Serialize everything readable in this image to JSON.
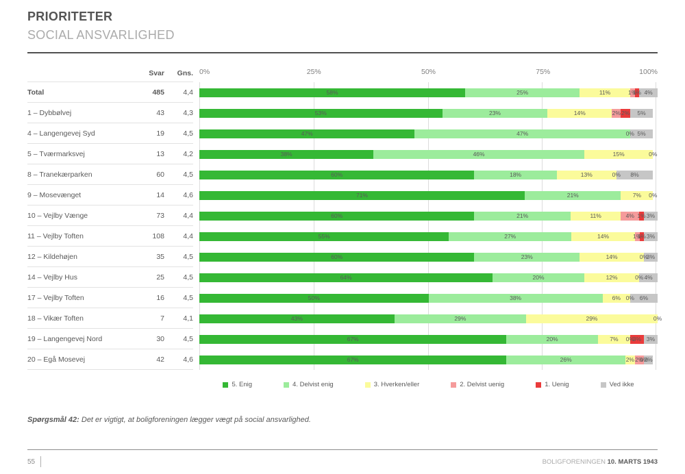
{
  "header": {
    "title": "PRIORITETER",
    "subtitle": "SOCIAL ANSVARLIGHED"
  },
  "table_headers": {
    "svar": "Svar",
    "gns": "Gns."
  },
  "axis_ticks": [
    "0%",
    "25%",
    "50%",
    "75%",
    "100%"
  ],
  "legend": [
    {
      "label": "5. Enig",
      "color": "#35B835"
    },
    {
      "label": "4. Delvist enig",
      "color": "#9CEC9C"
    },
    {
      "label": "3. Hverken/eller",
      "color": "#FBFB9B"
    },
    {
      "label": "2. Delvist uenig",
      "color": "#F59B9B"
    },
    {
      "label": "1. Uenig",
      "color": "#EA3B3B"
    },
    {
      "label": "Ved ikke",
      "color": "#C6C6C6"
    }
  ],
  "chart_data": {
    "type": "bar",
    "orientation": "horizontal",
    "stacked": true,
    "xlim": [
      0,
      100
    ],
    "grid": true,
    "series_names": [
      "5. Enig",
      "4. Delvist enig",
      "3. Hverken/eller",
      "2. Delvist uenig",
      "1. Uenig",
      "Ved ikke"
    ],
    "colors": [
      "#35B835",
      "#9CEC9C",
      "#FBFB9B",
      "#F59B9B",
      "#EA3B3B",
      "#C6C6C6"
    ],
    "rows": [
      {
        "label": "Total",
        "svar": "485",
        "gns": "4,4",
        "bold": true,
        "values": [
          58,
          25,
          11,
          1,
          1,
          4
        ],
        "labels": [
          "58%",
          "25%",
          "11%",
          "1%",
          "1%",
          "4%"
        ]
      },
      {
        "label": "1 – Dybbølvej",
        "svar": "43",
        "gns": "4,3",
        "bold": false,
        "values": [
          53,
          23,
          14,
          2,
          2,
          5
        ],
        "labels": [
          "53%",
          "23%",
          "14%",
          "2%",
          "2%",
          "5%"
        ]
      },
      {
        "label": "4 – Langengevej Syd",
        "svar": "19",
        "gns": "4,5",
        "bold": false,
        "values": [
          47,
          47,
          0,
          0,
          0,
          5
        ],
        "labels": [
          "47%",
          "47%",
          "",
          "0%",
          "",
          "5%"
        ]
      },
      {
        "label": "5 – Tværmarksvej",
        "svar": "13",
        "gns": "4,2",
        "bold": false,
        "values": [
          38,
          46,
          15,
          0,
          0,
          0
        ],
        "labels": [
          "38%",
          "46%",
          "15%",
          "",
          "",
          "0%"
        ]
      },
      {
        "label": "8 – Tranekærparken",
        "svar": "60",
        "gns": "4,5",
        "bold": false,
        "values": [
          60,
          18,
          13,
          0,
          0,
          8
        ],
        "labels": [
          "60%",
          "18%",
          "13%",
          "0%",
          "",
          "8%"
        ]
      },
      {
        "label": "9 – Mosevænget",
        "svar": "14",
        "gns": "4,6",
        "bold": false,
        "values": [
          71,
          21,
          7,
          0,
          0,
          0
        ],
        "labels": [
          "71%",
          "21%",
          "7%",
          "",
          "",
          "0%"
        ]
      },
      {
        "label": "10 – Vejlby Vænge",
        "svar": "73",
        "gns": "4,4",
        "bold": false,
        "values": [
          60,
          21,
          11,
          4,
          1,
          3
        ],
        "labels": [
          "60%",
          "21%",
          "11%",
          "4%",
          "1%",
          "3%"
        ]
      },
      {
        "label": "11 – Vejlby Toften",
        "svar": "108",
        "gns": "4,4",
        "bold": false,
        "values": [
          55,
          27,
          14,
          1,
          1,
          3
        ],
        "labels": [
          "55%",
          "27%",
          "14%",
          "1%",
          "1%",
          "3%"
        ]
      },
      {
        "label": "12 – Kildehøjen",
        "svar": "35",
        "gns": "4,5",
        "bold": false,
        "values": [
          60,
          23,
          14,
          0,
          0,
          3
        ],
        "labels": [
          "60%",
          "23%",
          "14%",
          "0%",
          "",
          "3%"
        ]
      },
      {
        "label": "14 – Vejlby Hus",
        "svar": "25",
        "gns": "4,5",
        "bold": false,
        "values": [
          64,
          20,
          12,
          0,
          0,
          4
        ],
        "labels": [
          "64%",
          "20%",
          "12%",
          "0%",
          "",
          "4%"
        ]
      },
      {
        "label": "17 – Vejlby Toften",
        "svar": "16",
        "gns": "4,5",
        "bold": false,
        "values": [
          50,
          38,
          6,
          0,
          0,
          6
        ],
        "labels": [
          "50%",
          "38%",
          "6%",
          "0%",
          "",
          "6%"
        ]
      },
      {
        "label": "18 – Vikær Toften",
        "svar": "7",
        "gns": "4,1",
        "bold": false,
        "values": [
          43,
          29,
          29,
          0,
          0,
          0
        ],
        "labels": [
          "43%",
          "29%",
          "29%",
          "",
          "",
          "0%"
        ]
      },
      {
        "label": "19 – Langengevej Nord",
        "svar": "30",
        "gns": "4,5",
        "bold": false,
        "values": [
          67,
          20,
          7,
          0,
          3,
          3
        ],
        "labels": [
          "67%",
          "20%",
          "7%",
          "0%",
          "3%",
          "3%"
        ]
      },
      {
        "label": "20 – Egå Mosevej",
        "svar": "42",
        "gns": "4,6",
        "bold": false,
        "values": [
          67,
          26,
          2,
          2,
          0,
          2
        ],
        "labels": [
          "67%",
          "26%",
          "2%",
          "2%",
          "0%",
          "2%"
        ]
      }
    ]
  },
  "footnote": {
    "prefix": "Spørgsmål 42:",
    "text": " Det er vigtigt, at boligforeningen lægger vægt på social ansvarlighed."
  },
  "footer": {
    "page": "55",
    "org": "BOLIGFORENINGEN",
    "date": "10. MARTS 1943"
  }
}
